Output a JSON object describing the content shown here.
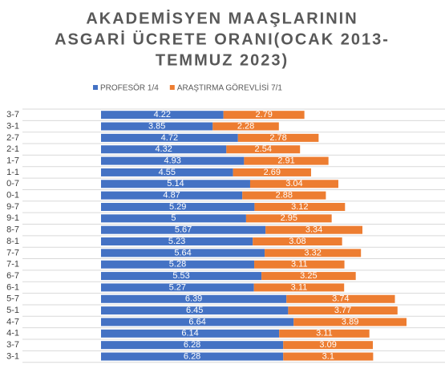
{
  "chart_data": {
    "type": "stacked-bar-horizontal",
    "title": [
      "AKADEMİSYEN MAAŞLARININ",
      "ASGARİ ÜCRETE ORANI(OCAK 2013-",
      "TEMMUZ 2023)"
    ],
    "categories": [
      "3-7",
      "3-1",
      "2-7",
      "2-1",
      "1-7",
      "1-1",
      "0-7",
      "0-1",
      "9-7",
      "9-1",
      "8-7",
      "8-1",
      "7-7",
      "7-1",
      "6-7",
      "6-1",
      "5-7",
      "5-1",
      "4-7",
      "4-1",
      "3-7",
      "3-1"
    ],
    "series": [
      {
        "name": "PROFESÖR 1/4",
        "color": "#4472c4",
        "values": [
          4.22,
          3.85,
          4.72,
          4.32,
          4.93,
          4.55,
          5.14,
          4.87,
          5.29,
          5,
          5.67,
          5.23,
          5.64,
          5.28,
          5.53,
          5.27,
          6.39,
          6.45,
          6.64,
          6.14,
          6.28,
          6.28
        ]
      },
      {
        "name": "ARAŞTIRMA GÖREVLİSİ 7/1",
        "color": "#ed7d31",
        "values": [
          2.79,
          2.28,
          2.78,
          2.54,
          2.91,
          2.69,
          3.04,
          2.88,
          3.12,
          2.95,
          3.34,
          3.08,
          3.32,
          3.11,
          3.25,
          3.11,
          3.74,
          3.77,
          3.89,
          3.11,
          3.09,
          3.1
        ]
      }
    ],
    "grid": true
  }
}
